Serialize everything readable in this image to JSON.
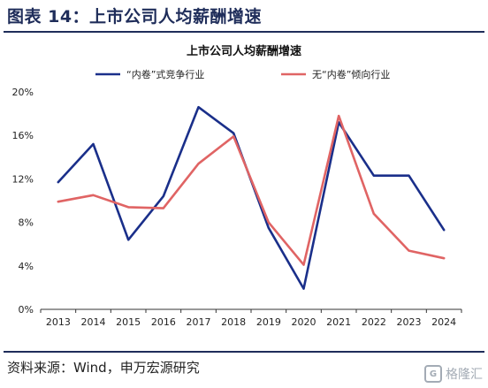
{
  "figure": {
    "title": "图表 14：上市公司人均薪酬增速",
    "source": "资料来源：Wind，申万宏源研究",
    "watermark": "格隆汇"
  },
  "chart_data": {
    "type": "line",
    "title": "上市公司人均薪酬增速",
    "xlabel": "",
    "ylabel": "",
    "x": [
      "2013",
      "2014",
      "2015",
      "2016",
      "2017",
      "2018",
      "2019",
      "2020",
      "2021",
      "2022",
      "2023",
      "2024"
    ],
    "ylim": [
      0,
      20
    ],
    "yticks": [
      "0%",
      "4%",
      "8%",
      "12%",
      "16%",
      "20%"
    ],
    "ytick_values": [
      0,
      4,
      8,
      12,
      16,
      20
    ],
    "legend_position": "top",
    "grid": false,
    "series": [
      {
        "name": "“内卷”式竞争行业",
        "color": "#1a2f8a",
        "values": [
          11.7,
          15.2,
          6.4,
          10.4,
          18.6,
          16.2,
          7.5,
          1.9,
          17.2,
          12.3,
          12.3,
          7.3
        ]
      },
      {
        "name": "无“内卷”倾向行业",
        "color": "#e06464",
        "values": [
          9.9,
          10.5,
          9.4,
          9.3,
          13.4,
          15.9,
          8.0,
          4.1,
          17.8,
          8.8,
          5.4,
          4.7
        ]
      }
    ]
  }
}
